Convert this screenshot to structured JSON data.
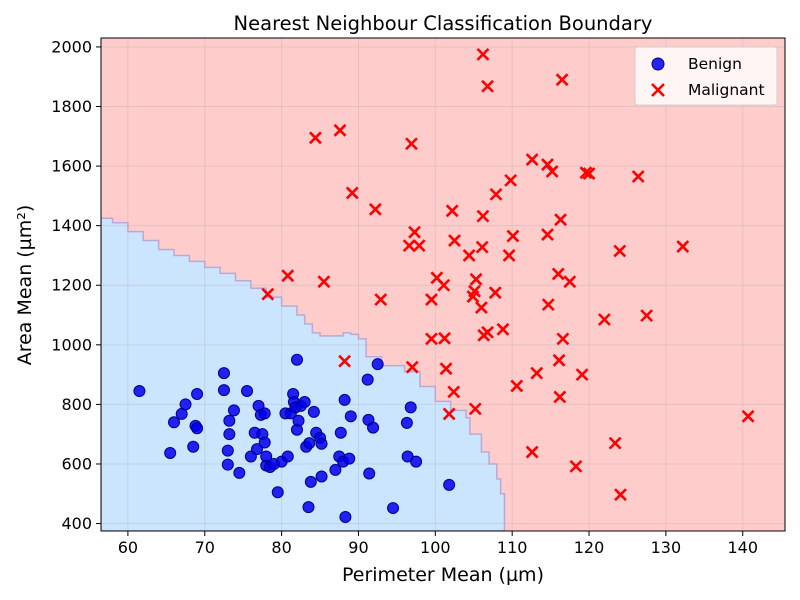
{
  "chart_data": {
    "type": "scatter",
    "title": "Nearest Neighbour Classification Boundary",
    "xlabel": "Perimeter Mean (µm)",
    "ylabel": "Area Mean (µm²)",
    "xlim": [
      56.5,
      145.5
    ],
    "ylim": [
      375,
      2030
    ],
    "xticks": [
      60,
      70,
      80,
      90,
      100,
      110,
      120,
      130,
      140
    ],
    "yticks": [
      400,
      600,
      800,
      1000,
      1200,
      1400,
      1600,
      1800,
      2000
    ],
    "grid": true,
    "legend_position": "top-right",
    "regions": {
      "benign_color": "#cce5ff",
      "malignant_color": "#ffcccc",
      "boundary_color": "#b9a9d8",
      "benign_region_boundary": [
        [
          56.5,
          1425
        ],
        [
          58,
          1410
        ],
        [
          60,
          1380
        ],
        [
          62,
          1350
        ],
        [
          64,
          1320
        ],
        [
          66,
          1300
        ],
        [
          68,
          1280
        ],
        [
          70,
          1260
        ],
        [
          72,
          1240
        ],
        [
          74,
          1215
        ],
        [
          76,
          1190
        ],
        [
          78,
          1160
        ],
        [
          80,
          1130
        ],
        [
          82,
          1100
        ],
        [
          83,
          1070
        ],
        [
          84,
          1040
        ],
        [
          85,
          1030
        ],
        [
          87,
          1030
        ],
        [
          88,
          1040
        ],
        [
          89,
          1035
        ],
        [
          90,
          1020
        ],
        [
          91,
          960
        ],
        [
          93,
          930
        ],
        [
          96,
          910
        ],
        [
          98,
          860
        ],
        [
          100,
          810
        ],
        [
          102,
          780
        ],
        [
          104,
          755
        ],
        [
          104.5,
          700
        ],
        [
          106,
          640
        ],
        [
          107,
          600
        ],
        [
          108,
          550
        ],
        [
          108.5,
          500
        ],
        [
          109,
          440
        ],
        [
          109,
          375
        ],
        [
          56.5,
          375
        ]
      ]
    },
    "series": [
      {
        "name": "Benign",
        "marker": "circle",
        "color": "#0000ee",
        "points": [
          [
            61.5,
            845
          ],
          [
            65.5,
            637
          ],
          [
            66,
            740
          ],
          [
            67,
            768
          ],
          [
            67.5,
            800
          ],
          [
            68.5,
            658
          ],
          [
            68.8,
            728
          ],
          [
            69,
            720
          ],
          [
            69,
            835
          ],
          [
            72.5,
            905
          ],
          [
            72.5,
            848
          ],
          [
            73,
            598
          ],
          [
            73,
            645
          ],
          [
            73.2,
            700
          ],
          [
            73.2,
            745
          ],
          [
            73.8,
            780
          ],
          [
            74.5,
            570
          ],
          [
            75.5,
            845
          ],
          [
            76,
            625
          ],
          [
            76.5,
            705
          ],
          [
            76.8,
            650
          ],
          [
            77,
            795
          ],
          [
            77.3,
            765
          ],
          [
            77.5,
            700
          ],
          [
            77.8,
            770
          ],
          [
            77.8,
            672
          ],
          [
            78,
            595
          ],
          [
            78,
            625
          ],
          [
            78.5,
            590
          ],
          [
            79,
            600
          ],
          [
            79.5,
            505
          ],
          [
            80,
            608
          ],
          [
            80.5,
            770
          ],
          [
            80.8,
            625
          ],
          [
            81.2,
            770
          ],
          [
            81.5,
            835
          ],
          [
            81.6,
            808
          ],
          [
            81.8,
            790
          ],
          [
            82,
            950
          ],
          [
            82,
            715
          ],
          [
            82.2,
            745
          ],
          [
            82.5,
            795
          ],
          [
            83,
            808
          ],
          [
            83.2,
            658
          ],
          [
            83.5,
            455
          ],
          [
            83.6,
            670
          ],
          [
            83.8,
            540
          ],
          [
            84.2,
            775
          ],
          [
            84.5,
            705
          ],
          [
            85,
            688
          ],
          [
            85.2,
            668
          ],
          [
            85.2,
            558
          ],
          [
            87,
            580
          ],
          [
            87.5,
            625
          ],
          [
            87.7,
            705
          ],
          [
            88,
            608
          ],
          [
            88.2,
            815
          ],
          [
            88.3,
            422
          ],
          [
            88.8,
            618
          ],
          [
            89,
            760
          ],
          [
            91.2,
            883
          ],
          [
            91.3,
            748
          ],
          [
            91.4,
            568
          ],
          [
            91.9,
            722
          ],
          [
            92.5,
            935
          ],
          [
            94.5,
            452
          ],
          [
            96.3,
            738
          ],
          [
            96.4,
            625
          ],
          [
            96.8,
            790
          ],
          [
            97.5,
            608
          ],
          [
            101.8,
            530
          ]
        ]
      },
      {
        "name": "Malignant",
        "marker": "x",
        "color": "#ff0000",
        "points": [
          [
            106.2,
            1975
          ],
          [
            116.5,
            1890
          ],
          [
            106.8,
            1868
          ],
          [
            87.6,
            1720
          ],
          [
            84.4,
            1695
          ],
          [
            96.9,
            1675
          ],
          [
            112.6,
            1622
          ],
          [
            114.6,
            1605
          ],
          [
            115.2,
            1582
          ],
          [
            119.6,
            1578
          ],
          [
            120,
            1575
          ],
          [
            126.4,
            1565
          ],
          [
            109.8,
            1552
          ],
          [
            89.2,
            1510
          ],
          [
            107.9,
            1505
          ],
          [
            92.2,
            1455
          ],
          [
            102.2,
            1450
          ],
          [
            106.2,
            1432
          ],
          [
            116.3,
            1420
          ],
          [
            97.3,
            1378
          ],
          [
            114.6,
            1370
          ],
          [
            110.1,
            1365
          ],
          [
            102.5,
            1350
          ],
          [
            96.6,
            1333
          ],
          [
            97.9,
            1333
          ],
          [
            106.1,
            1328
          ],
          [
            132.2,
            1330
          ],
          [
            124,
            1315
          ],
          [
            109.6,
            1300
          ],
          [
            104.4,
            1300
          ],
          [
            116,
            1238
          ],
          [
            80.8,
            1232
          ],
          [
            100.2,
            1225
          ],
          [
            105.3,
            1220
          ],
          [
            117.5,
            1212
          ],
          [
            85.5,
            1212
          ],
          [
            101.1,
            1200
          ],
          [
            105.1,
            1180
          ],
          [
            107.8,
            1175
          ],
          [
            78.2,
            1170
          ],
          [
            104.9,
            1162
          ],
          [
            92.9,
            1152
          ],
          [
            99.5,
            1152
          ],
          [
            114.7,
            1135
          ],
          [
            106,
            1125
          ],
          [
            127.5,
            1098
          ],
          [
            122,
            1085
          ],
          [
            108.8,
            1052
          ],
          [
            106.8,
            1042
          ],
          [
            106.3,
            1032
          ],
          [
            99.5,
            1020
          ],
          [
            101.2,
            1022
          ],
          [
            116.6,
            1020
          ],
          [
            88.2,
            945
          ],
          [
            116.1,
            948
          ],
          [
            97,
            925
          ],
          [
            101.4,
            920
          ],
          [
            113.2,
            905
          ],
          [
            119.1,
            900
          ],
          [
            110.6,
            862
          ],
          [
            102.4,
            842
          ],
          [
            116.2,
            825
          ],
          [
            105.2,
            785
          ],
          [
            101.8,
            768
          ],
          [
            140.7,
            760
          ],
          [
            123.4,
            670
          ],
          [
            112.6,
            640
          ],
          [
            118.3,
            592
          ],
          [
            124.1,
            497
          ]
        ]
      }
    ]
  }
}
